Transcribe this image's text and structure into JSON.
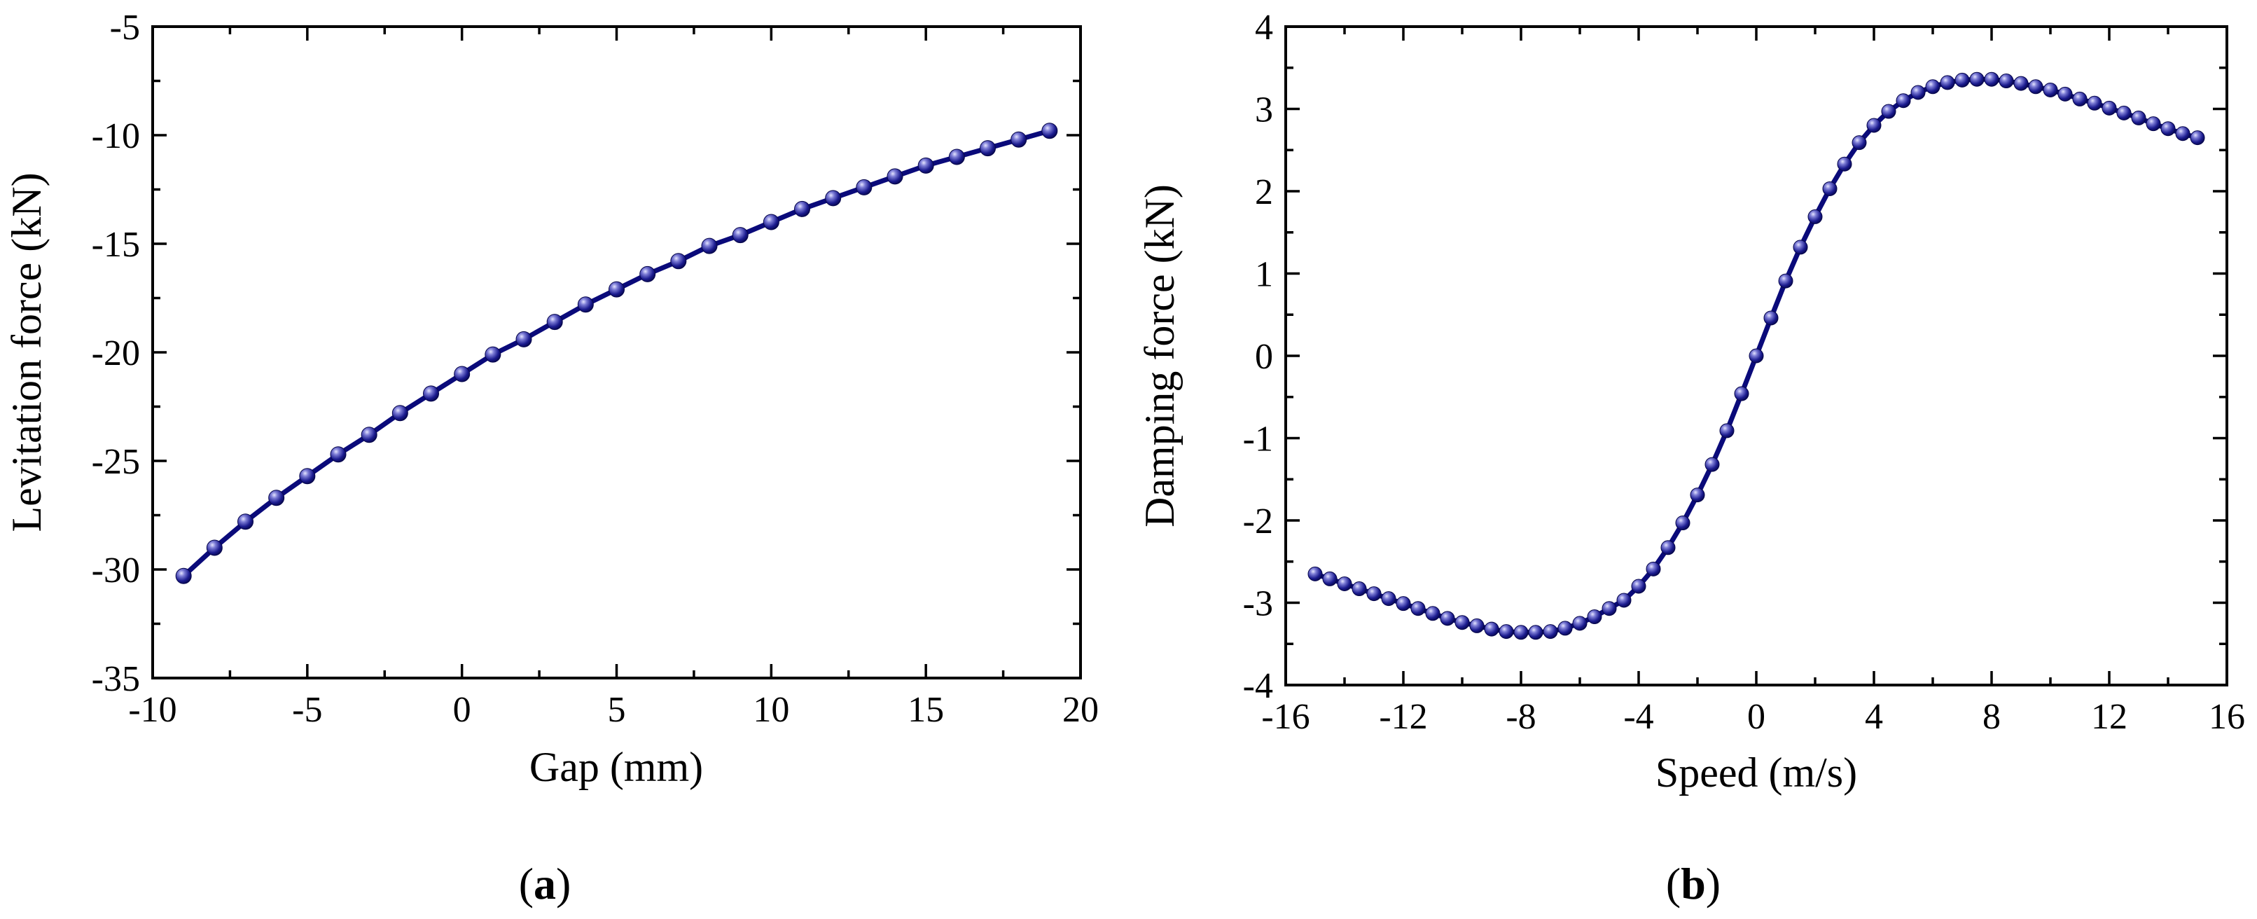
{
  "chart_data": [
    {
      "type": "line",
      "panel_label": "a",
      "xlabel": "Gap (mm)",
      "ylabel": "Levitation force (kN)",
      "xlim": [
        -10,
        20
      ],
      "ylim": [
        -35,
        -5
      ],
      "xticks": [
        -10,
        -5,
        0,
        5,
        10,
        15,
        20
      ],
      "yticks": [
        -35,
        -30,
        -25,
        -20,
        -15,
        -10,
        -5
      ],
      "xtick_labels": [
        "-10",
        "-5",
        "0",
        "5",
        "10",
        "15",
        "20"
      ],
      "ytick_labels": [
        "-35",
        "-30",
        "-25",
        "-20",
        "-15",
        "-10",
        "-5"
      ],
      "grid": false,
      "series": [
        {
          "name": "Levitation force",
          "color": "#0a0a7a",
          "marker": "sphere",
          "x": [
            -9,
            -8,
            -7,
            -6,
            -5,
            -4,
            -3,
            -2,
            -1,
            0,
            1,
            2,
            3,
            4,
            5,
            6,
            7,
            8,
            9,
            10,
            11,
            12,
            13,
            14,
            15,
            16,
            17,
            18,
            19
          ],
          "y": [
            -30.3,
            -29.0,
            -27.8,
            -26.7,
            -25.7,
            -24.7,
            -23.8,
            -22.8,
            -21.9,
            -21.0,
            -20.1,
            -19.4,
            -18.6,
            -17.8,
            -17.1,
            -16.4,
            -15.8,
            -15.1,
            -14.6,
            -14.0,
            -13.4,
            -12.9,
            -12.4,
            -11.9,
            -11.4,
            -11.0,
            -10.6,
            -10.2,
            -9.8
          ]
        }
      ]
    },
    {
      "type": "line",
      "panel_label": "b",
      "xlabel": "Speed (m/s)",
      "ylabel": "Damping force (kN)",
      "xlim": [
        -16,
        16
      ],
      "ylim": [
        -4,
        4
      ],
      "xticks": [
        -16,
        -12,
        -8,
        -4,
        0,
        4,
        8,
        12,
        16
      ],
      "yticks": [
        -4,
        -3,
        -2,
        -1,
        0,
        1,
        2,
        3,
        4
      ],
      "xtick_labels": [
        "-16",
        "-12",
        "-8",
        "-4",
        "0",
        "4",
        "8",
        "12",
        "16"
      ],
      "ytick_labels": [
        "-4",
        "-3",
        "-2",
        "-1",
        "0",
        "1",
        "2",
        "3",
        "4"
      ],
      "grid": false,
      "series": [
        {
          "name": "Damping force",
          "color": "#0a0a7a",
          "marker": "sphere",
          "x": [
            -15,
            -14.5,
            -14,
            -13.5,
            -13,
            -12.5,
            -12,
            -11.5,
            -11,
            -10.5,
            -10,
            -9.5,
            -9,
            -8.5,
            -8,
            -7.5,
            -7,
            -6.5,
            -6,
            -5.5,
            -5,
            -4.5,
            -4,
            -3.5,
            -3,
            -2.5,
            -2,
            -1.5,
            -1,
            -0.5,
            0,
            0.5,
            1,
            1.5,
            2,
            2.5,
            3,
            3.5,
            4,
            4.5,
            5,
            5.5,
            6,
            6.5,
            7,
            7.5,
            8,
            8.5,
            9,
            9.5,
            10,
            10.5,
            11,
            11.5,
            12,
            12.5,
            13,
            13.5,
            14,
            14.5,
            15
          ],
          "y": [
            -2.65,
            -2.71,
            -2.77,
            -2.83,
            -2.89,
            -2.95,
            -3.01,
            -3.07,
            -3.13,
            -3.19,
            -3.24,
            -3.28,
            -3.32,
            -3.35,
            -3.36,
            -3.36,
            -3.35,
            -3.31,
            -3.25,
            -3.17,
            -3.07,
            -2.97,
            -2.8,
            -2.59,
            -2.33,
            -2.03,
            -1.69,
            -1.32,
            -0.91,
            -0.46,
            0.0,
            0.46,
            0.91,
            1.32,
            1.69,
            2.03,
            2.33,
            2.59,
            2.8,
            2.97,
            3.1,
            3.2,
            3.27,
            3.32,
            3.35,
            3.36,
            3.36,
            3.34,
            3.31,
            3.27,
            3.23,
            3.18,
            3.12,
            3.07,
            3.01,
            2.95,
            2.89,
            2.82,
            2.76,
            2.7,
            2.65
          ]
        }
      ]
    }
  ]
}
